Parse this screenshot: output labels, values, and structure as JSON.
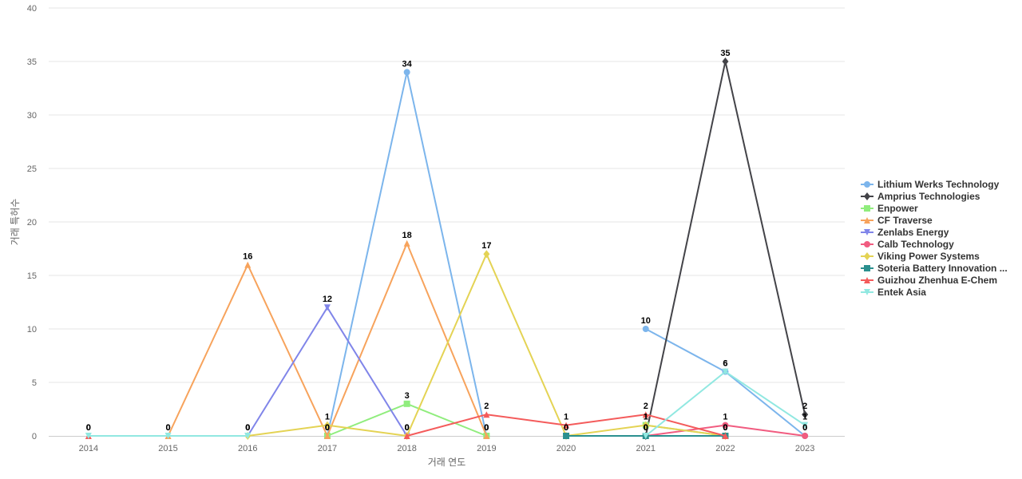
{
  "chart_data": {
    "type": "line",
    "title": "",
    "xlabel": "거래 연도",
    "ylabel": "거래 특허수",
    "x": [
      "2014",
      "2015",
      "2016",
      "2017",
      "2018",
      "2019",
      "2020",
      "2021",
      "2022",
      "2023"
    ],
    "ylim": [
      0,
      40
    ],
    "yticks": [
      0,
      5,
      10,
      15,
      20,
      25,
      30,
      35,
      40
    ],
    "grid": true,
    "legend_position": "right",
    "series": [
      {
        "name": "Lithium Werks Technology",
        "color": "#7cb5ec",
        "marker": "circle",
        "values": [
          null,
          null,
          null,
          0,
          34,
          0,
          null,
          10,
          6,
          0
        ]
      },
      {
        "name": "Amprius Technologies",
        "color": "#434348",
        "marker": "diamond",
        "values": [
          null,
          null,
          null,
          null,
          null,
          null,
          null,
          0,
          35,
          2
        ]
      },
      {
        "name": "Enpower",
        "color": "#90ed7d",
        "marker": "square",
        "values": [
          null,
          null,
          null,
          0,
          3,
          0,
          null,
          1,
          0,
          null
        ]
      },
      {
        "name": "CF Traverse",
        "color": "#f7a35c",
        "marker": "triangle",
        "values": [
          null,
          0,
          16,
          0,
          18,
          0,
          null,
          null,
          null,
          null
        ]
      },
      {
        "name": "Zenlabs Energy",
        "color": "#8085e9",
        "marker": "triangle-down",
        "values": [
          null,
          null,
          0,
          12,
          0,
          null,
          null,
          null,
          null,
          null
        ]
      },
      {
        "name": "Calb Technology",
        "color": "#f15c80",
        "marker": "circle",
        "values": [
          null,
          null,
          null,
          null,
          null,
          null,
          null,
          0,
          1,
          0
        ]
      },
      {
        "name": "Viking Power Systems",
        "color": "#e4d354",
        "marker": "diamond",
        "values": [
          null,
          null,
          0,
          1,
          0,
          17,
          0,
          1,
          0,
          null
        ]
      },
      {
        "name": "Soteria Battery Innovation ...",
        "color": "#2b908f",
        "marker": "square",
        "values": [
          null,
          null,
          null,
          null,
          null,
          null,
          0,
          0,
          0,
          null
        ]
      },
      {
        "name": "Guizhou Zhenhua E-Chem",
        "color": "#f45b5b",
        "marker": "triangle",
        "values": [
          0,
          null,
          null,
          null,
          0,
          2,
          1,
          2,
          0,
          null
        ]
      },
      {
        "name": "Entek Asia",
        "color": "#91e8e1",
        "marker": "triangle-down",
        "values": [
          0,
          0,
          0,
          null,
          null,
          null,
          null,
          0,
          6,
          1
        ]
      }
    ]
  }
}
